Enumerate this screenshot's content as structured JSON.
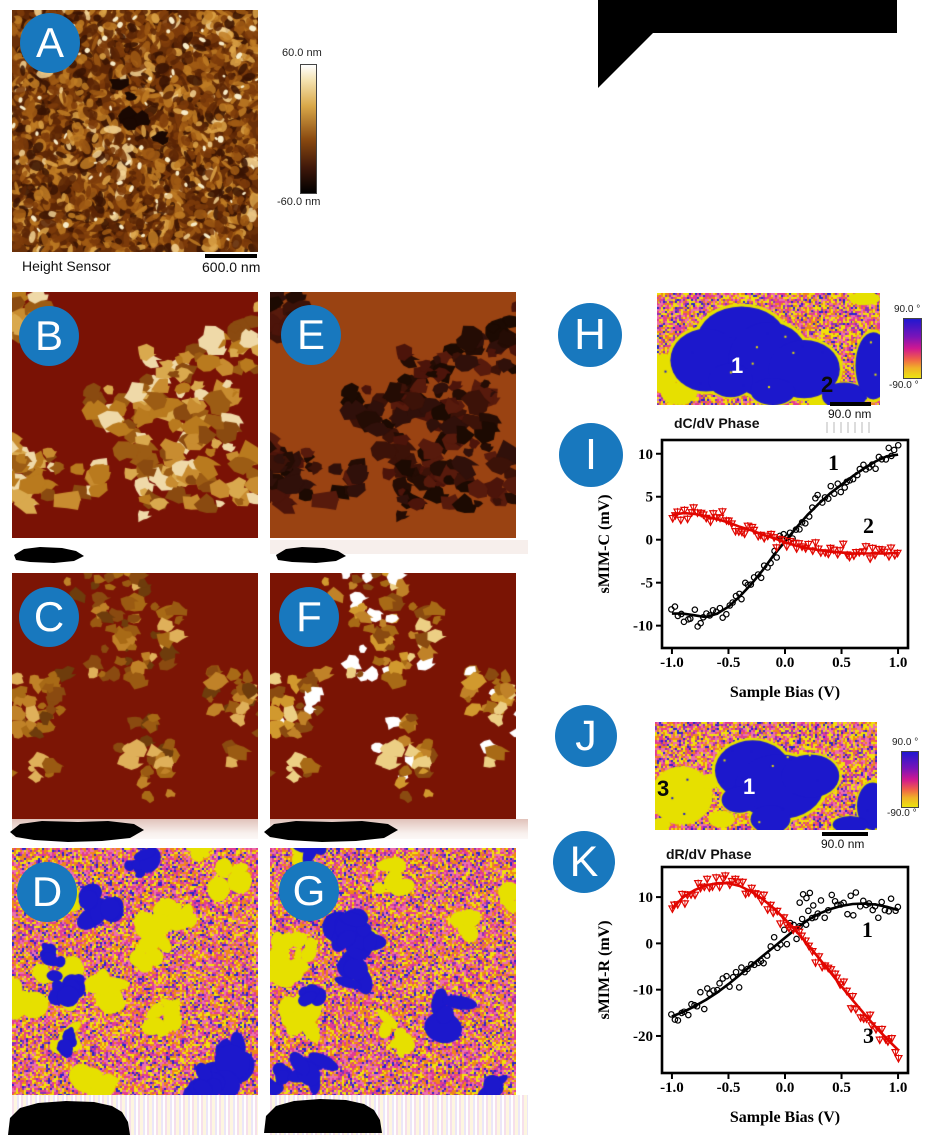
{
  "figure": {
    "background": "#ffffff",
    "accent_circle_color": "#1878be",
    "phase_blue": "#1c18cc",
    "phase_yellow": "#e6e000",
    "plot_red": "#e10600"
  },
  "panels": {
    "a": {
      "letter": "A",
      "caption": "Height Sensor",
      "scalebar_label": "600.0 nm",
      "colorbar_top": "60.0 nm",
      "colorbar_bottom": "-60.0 nm"
    },
    "b": {
      "letter": "B"
    },
    "c": {
      "letter": "C"
    },
    "d": {
      "letter": "D"
    },
    "e": {
      "letter": "E"
    },
    "f": {
      "letter": "F"
    },
    "g": {
      "letter": "G"
    },
    "h": {
      "letter": "H",
      "caption": "dC/dV Phase",
      "scalebar_label": "90.0 nm",
      "colorbar_top": "90.0 °",
      "colorbar_bottom": "-90.0 °",
      "region_labels": [
        {
          "text": "1"
        },
        {
          "text": "2"
        }
      ]
    },
    "i": {
      "letter": "I"
    },
    "j": {
      "letter": "J",
      "caption": "dR/dV Phase",
      "scalebar_label": "90.0 nm",
      "colorbar_top": "90.0 °",
      "colorbar_bottom": "-90.0 °",
      "region_labels": [
        {
          "text": "3"
        },
        {
          "text": "1"
        }
      ]
    },
    "k": {
      "letter": "K"
    }
  },
  "chart_data": [
    {
      "id": "I",
      "type": "scatter",
      "title": "",
      "xlabel": "Sample Bias (V)",
      "ylabel": "sMIM-C (mV)",
      "xlim": [
        -1.088,
        1.088
      ],
      "ylim": [
        -12.6,
        11.6
      ],
      "grid": false,
      "xticks": [
        -1.0,
        -0.5,
        0.0,
        0.5,
        1.0
      ],
      "xtick_labels": [
        "-1.0",
        "-0.5",
        "0.0",
        "0.5",
        "1.0"
      ],
      "yticks": [
        10,
        5,
        0,
        -5,
        -10
      ],
      "series": [
        {
          "name": "1",
          "color": "#000000",
          "marker": "circle",
          "errorbar": false,
          "label_x": 0.38,
          "label_y": 8.1,
          "scatter_sd": 0.55,
          "x": [
            -1.0,
            -0.9,
            -0.8,
            -0.7,
            -0.6,
            -0.5,
            -0.4,
            -0.3,
            -0.2,
            -0.1,
            0.0,
            0.1,
            0.2,
            0.3,
            0.4,
            0.5,
            0.6,
            0.7,
            0.8,
            0.9,
            1.0
          ],
          "y": [
            -8.6,
            -8.6,
            -8.8,
            -9.0,
            -8.6,
            -7.8,
            -6.6,
            -5.2,
            -3.6,
            -1.8,
            -0.2,
            1.4,
            2.9,
            4.2,
            5.4,
            6.4,
            7.4,
            8.3,
            9.1,
            9.7,
            9.9
          ]
        },
        {
          "name": "2",
          "color": "#e10600",
          "marker": "triangle-down",
          "errorbar": true,
          "label_x": 0.69,
          "label_y": 0.8,
          "scatter_sd": 0.4,
          "x": [
            -1.0,
            -0.9,
            -0.8,
            -0.7,
            -0.6,
            -0.5,
            -0.4,
            -0.3,
            -0.2,
            -0.1,
            0.0,
            0.1,
            0.2,
            0.3,
            0.4,
            0.5,
            0.6,
            0.7,
            0.8,
            0.9,
            1.0
          ],
          "y": [
            2.9,
            3.1,
            3.0,
            2.7,
            2.4,
            2.0,
            1.5,
            1.1,
            0.6,
            0.2,
            -0.3,
            -0.7,
            -1.0,
            -1.2,
            -1.4,
            -1.5,
            -1.6,
            -1.6,
            -1.6,
            -1.6,
            -1.5
          ]
        }
      ]
    },
    {
      "id": "K",
      "type": "scatter",
      "title": "",
      "xlabel": "Sample Bias (V)",
      "ylabel": "sMIM-R (mV)",
      "xlim": [
        -1.088,
        1.088
      ],
      "ylim": [
        -28,
        16.5
      ],
      "grid": false,
      "xticks": [
        -1.0,
        -0.5,
        0.0,
        0.5,
        1.0
      ],
      "xtick_labels": [
        "-1.0",
        "-0.5",
        "0.0",
        "0.5",
        "1.0"
      ],
      "yticks": [
        10,
        0,
        -10,
        -20
      ],
      "series": [
        {
          "name": "1",
          "color": "#000000",
          "marker": "circle",
          "errorbar": false,
          "label_x": 0.68,
          "label_y": 1.4,
          "scatter_sd": 1.3,
          "x": [
            -1.0,
            -0.9,
            -0.8,
            -0.7,
            -0.6,
            -0.5,
            -0.4,
            -0.3,
            -0.2,
            -0.1,
            0.0,
            0.1,
            0.2,
            0.3,
            0.4,
            0.5,
            0.6,
            0.7,
            0.8,
            0.9,
            1.0
          ],
          "y": [
            -15.8,
            -14.8,
            -13.6,
            -12.2,
            -10.6,
            -8.8,
            -6.8,
            -4.8,
            -2.8,
            -0.8,
            1.2,
            3.2,
            5.0,
            6.4,
            7.4,
            8.1,
            8.5,
            8.6,
            8.4,
            7.9,
            7.2
          ],
          "outliers": {
            "x": [
              0.13,
              0.16,
              0.19,
              0.22,
              0.25
            ],
            "y": [
              8.8,
              10.6,
              9.8,
              10.9,
              8.2
            ]
          }
        },
        {
          "name": "3",
          "color": "#e10600",
          "marker": "triangle-down",
          "errorbar": true,
          "label_x": 0.69,
          "label_y": -21.5,
          "scatter_sd": 0.9,
          "x": [
            -1.0,
            -0.9,
            -0.8,
            -0.7,
            -0.6,
            -0.5,
            -0.4,
            -0.3,
            -0.2,
            -0.1,
            0.0,
            0.1,
            0.2,
            0.3,
            0.4,
            0.5,
            0.6,
            0.7,
            0.8,
            0.9,
            1.0
          ],
          "y": [
            7.5,
            10.0,
            11.5,
            12.5,
            13.0,
            13.0,
            12.4,
            11.2,
            9.6,
            7.6,
            5.2,
            2.6,
            -0.2,
            -3.2,
            -6.2,
            -9.3,
            -12.3,
            -15.2,
            -18.0,
            -20.6,
            -23.0
          ]
        }
      ]
    }
  ]
}
